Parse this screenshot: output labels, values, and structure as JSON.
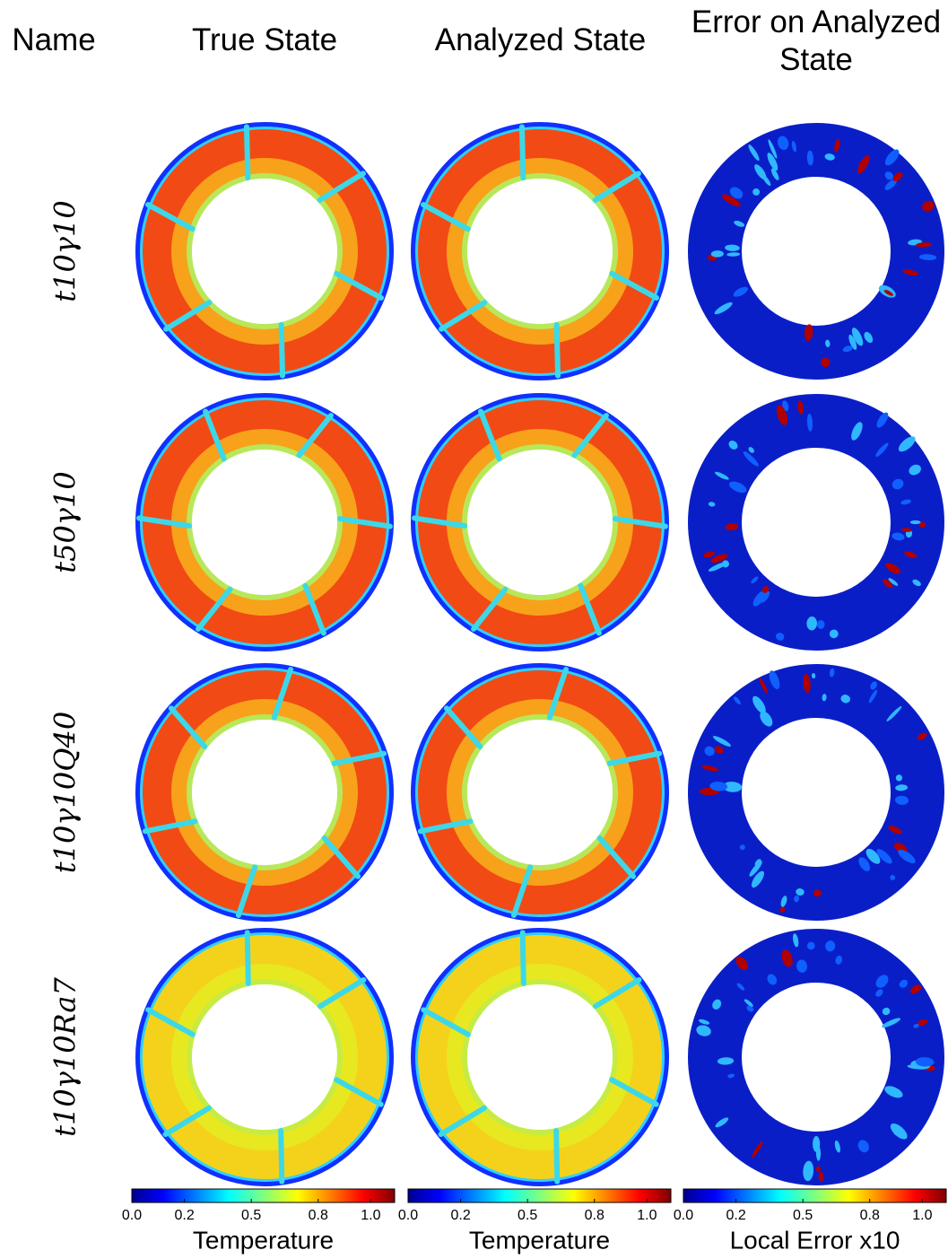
{
  "header": {
    "columns": [
      "Name",
      "True State",
      "Analyzed State",
      "Error on Analyzed State"
    ]
  },
  "rows": [
    {
      "name": "t10γ10",
      "style": "warm"
    },
    {
      "name": "t50γ10",
      "style": "warm"
    },
    {
      "name": "t10γ10Q40",
      "style": "warm"
    },
    {
      "name": "t10γ10Ra7",
      "style": "mild"
    }
  ],
  "colorbars": [
    {
      "label": "Temperature",
      "lim": [
        0,
        1.1
      ],
      "ticks": [
        {
          "value": 0,
          "label": "0.0"
        },
        {
          "value": 0.22,
          "label": "0.2"
        },
        {
          "value": 0.5,
          "label": "0.5"
        },
        {
          "value": 0.78,
          "label": "0.8"
        },
        {
          "value": 1.0,
          "label": "1.0"
        }
      ]
    },
    {
      "label": "Temperature",
      "lim": [
        0,
        1.1
      ],
      "ticks": [
        {
          "value": 0,
          "label": "0.0"
        },
        {
          "value": 0.22,
          "label": "0.2"
        },
        {
          "value": 0.5,
          "label": "0.5"
        },
        {
          "value": 0.78,
          "label": "0.8"
        },
        {
          "value": 1.0,
          "label": "1.0"
        }
      ]
    },
    {
      "label": "Local Error x10",
      "lim": [
        0,
        1.1
      ],
      "ticks": [
        {
          "value": 0,
          "label": "0.0"
        },
        {
          "value": 0.22,
          "label": "0.2"
        },
        {
          "value": 0.5,
          "label": "0.5"
        },
        {
          "value": 0.78,
          "label": "0.8"
        },
        {
          "value": 1.0,
          "label": "1.0"
        }
      ]
    }
  ]
}
